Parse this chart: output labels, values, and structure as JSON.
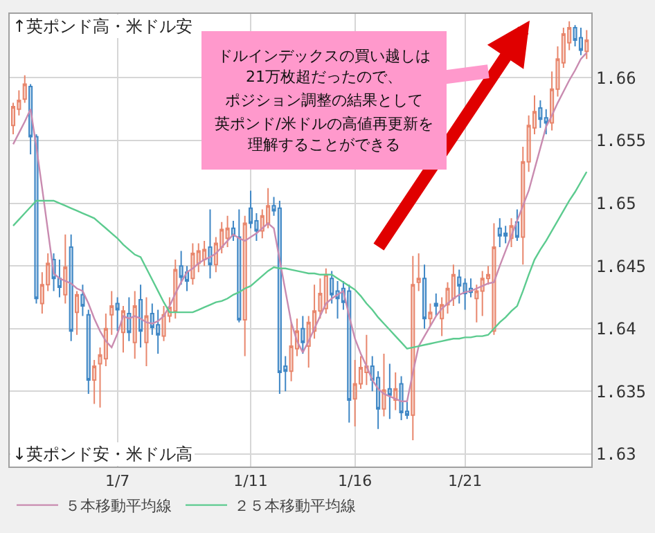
{
  "chart_data": {
    "type": "candlestick",
    "categories": [
      null,
      null,
      null,
      null,
      null,
      null,
      null,
      null,
      null,
      null,
      null,
      null,
      null,
      null,
      null,
      null,
      null,
      null,
      "1/7",
      null,
      null,
      null,
      null,
      null,
      null,
      null,
      null,
      null,
      null,
      null,
      null,
      null,
      null,
      null,
      null,
      null,
      null,
      null,
      null,
      null,
      null,
      "1/11",
      null,
      null,
      null,
      null,
      null,
      null,
      null,
      null,
      null,
      null,
      null,
      null,
      null,
      null,
      null,
      null,
      null,
      "1/16",
      null,
      null,
      null,
      null,
      null,
      null,
      null,
      null,
      null,
      null,
      null,
      null,
      null,
      null,
      null,
      null,
      null,
      null,
      "1/21",
      null,
      null,
      null,
      null,
      null,
      null,
      null,
      null,
      null,
      null,
      null,
      null,
      null,
      null,
      null,
      null,
      null,
      null,
      null,
      null,
      null
    ],
    "ohlc": [
      [
        1.6562,
        1.658,
        1.6555,
        1.6577
      ],
      [
        1.6575,
        1.659,
        1.657,
        1.6582
      ],
      [
        1.6583,
        1.6602,
        1.658,
        1.6595
      ],
      [
        1.6593,
        1.6595,
        1.6539,
        1.6553
      ],
      [
        1.6553,
        1.6555,
        1.642,
        1.6424
      ],
      [
        1.642,
        1.6445,
        1.6412,
        1.6435
      ],
      [
        1.6435,
        1.646,
        1.643,
        1.6452
      ],
      [
        1.6455,
        1.646,
        1.643,
        1.644
      ],
      [
        1.644,
        1.6455,
        1.6425,
        1.6433
      ],
      [
        1.6427,
        1.6475,
        1.642,
        1.6449
      ],
      [
        1.6465,
        1.6475,
        1.639,
        1.6398
      ],
      [
        1.6413,
        1.643,
        1.6395,
        1.6427
      ],
      [
        1.6427,
        1.6435,
        1.641,
        1.6418
      ],
      [
        1.6411,
        1.6415,
        1.6348,
        1.6359
      ],
      [
        1.6359,
        1.6375,
        1.634,
        1.637
      ],
      [
        1.6372,
        1.6385,
        1.6337,
        1.6379
      ],
      [
        1.6376,
        1.6412,
        1.637,
        1.64
      ],
      [
        1.6411,
        1.643,
        1.6395,
        1.6418
      ],
      [
        1.642,
        1.6425,
        1.6398,
        1.6415
      ],
      [
        1.6397,
        1.6418,
        1.6381,
        1.6414
      ],
      [
        1.6412,
        1.6425,
        1.639,
        1.6397
      ],
      [
        1.6389,
        1.643,
        1.6376,
        1.6418
      ],
      [
        1.6423,
        1.6435,
        1.6385,
        1.6398
      ],
      [
        1.6389,
        1.6425,
        1.637,
        1.641
      ],
      [
        1.6412,
        1.642,
        1.6395,
        1.6401
      ],
      [
        1.6403,
        1.6415,
        1.638,
        1.6395
      ],
      [
        1.6394,
        1.6418,
        1.639,
        1.6411
      ],
      [
        1.641,
        1.6425,
        1.6405,
        1.6417
      ],
      [
        1.6414,
        1.6455,
        1.6408,
        1.6447
      ],
      [
        1.645,
        1.6462,
        1.6435,
        1.6441
      ],
      [
        1.6445,
        1.645,
        1.643,
        1.6438
      ],
      [
        1.644,
        1.6468,
        1.6435,
        1.646
      ],
      [
        1.6452,
        1.6468,
        1.6445,
        1.6462
      ],
      [
        1.6455,
        1.647,
        1.645,
        1.6463
      ],
      [
        1.6465,
        1.6495,
        1.644,
        1.6451
      ],
      [
        1.6451,
        1.6473,
        1.6445,
        1.6468
      ],
      [
        1.6465,
        1.6485,
        1.646,
        1.6479
      ],
      [
        1.6472,
        1.649,
        1.6465,
        1.648
      ],
      [
        1.648,
        1.6486,
        1.647,
        1.6474
      ],
      [
        1.6473,
        1.6495,
        1.6405,
        1.6407
      ],
      [
        1.6407,
        1.649,
        1.6378,
        1.6484
      ],
      [
        1.6496,
        1.651,
        1.648,
        1.6484
      ],
      [
        1.6486,
        1.6492,
        1.647,
        1.6478
      ],
      [
        1.6478,
        1.6495,
        1.6472,
        1.649
      ],
      [
        1.6484,
        1.6512,
        1.648,
        1.6498
      ],
      [
        1.6498,
        1.6505,
        1.649,
        1.6494
      ],
      [
        1.6496,
        1.6502,
        1.6348,
        1.6365
      ],
      [
        1.637,
        1.6378,
        1.635,
        1.6366
      ],
      [
        1.6366,
        1.6405,
        1.6358,
        1.6386
      ],
      [
        1.6384,
        1.6408,
        1.6378,
        1.6398
      ],
      [
        1.64,
        1.641,
        1.638,
        1.6389
      ],
      [
        1.6386,
        1.641,
        1.6369,
        1.6405
      ],
      [
        1.6398,
        1.6435,
        1.6392,
        1.6414
      ],
      [
        1.6414,
        1.644,
        1.6408,
        1.6428
      ],
      [
        1.6416,
        1.6448,
        1.6412,
        1.6443
      ],
      [
        1.644,
        1.6446,
        1.642,
        1.6427
      ],
      [
        1.643,
        1.6438,
        1.6408,
        1.6424
      ],
      [
        1.6432,
        1.6438,
        1.6415,
        1.6421
      ],
      [
        1.643,
        1.6435,
        1.6325,
        1.6343
      ],
      [
        1.6344,
        1.6375,
        1.6322,
        1.6356
      ],
      [
        1.6356,
        1.6378,
        1.6352,
        1.6369
      ],
      [
        1.6365,
        1.6395,
        1.6355,
        1.637
      ],
      [
        1.637,
        1.6378,
        1.635,
        1.6359
      ],
      [
        1.6361,
        1.6366,
        1.632,
        1.6336
      ],
      [
        1.6336,
        1.638,
        1.633,
        1.6351
      ],
      [
        1.6352,
        1.6372,
        1.6328,
        1.6347
      ],
      [
        1.6343,
        1.6365,
        1.6335,
        1.6352
      ],
      [
        1.6356,
        1.6362,
        1.6327,
        1.6333
      ],
      [
        1.6334,
        1.6342,
        1.6328,
        1.6331
      ],
      [
        1.6331,
        1.6458,
        1.6311,
        1.6435
      ],
      [
        1.6437,
        1.646,
        1.643,
        1.644
      ],
      [
        1.644,
        1.6451,
        1.64,
        1.6408
      ],
      [
        1.6408,
        1.642,
        1.6402,
        1.6413
      ],
      [
        1.642,
        1.6428,
        1.641,
        1.6418
      ],
      [
        1.6408,
        1.6425,
        1.6394,
        1.6419
      ],
      [
        1.6419,
        1.6437,
        1.6412,
        1.6432
      ],
      [
        1.6424,
        1.6451,
        1.6418,
        1.6443
      ],
      [
        1.6441,
        1.6447,
        1.642,
        1.6434
      ],
      [
        1.6436,
        1.644,
        1.6415,
        1.6428
      ],
      [
        1.6432,
        1.644,
        1.6425,
        1.6429
      ],
      [
        1.6424,
        1.6435,
        1.6405,
        1.643
      ],
      [
        1.643,
        1.6446,
        1.641,
        1.644
      ],
      [
        1.644,
        1.645,
        1.6435,
        1.6443
      ],
      [
        1.6398,
        1.6484,
        1.6395,
        1.6465
      ],
      [
        1.648,
        1.6488,
        1.6465,
        1.6474
      ],
      [
        1.6476,
        1.6482,
        1.6468,
        1.6474
      ],
      [
        1.6472,
        1.6488,
        1.6465,
        1.6482
      ],
      [
        1.6485,
        1.6495,
        1.647,
        1.6473
      ],
      [
        1.6473,
        1.6545,
        1.6451,
        1.6533
      ],
      [
        1.6533,
        1.657,
        1.6525,
        1.6562
      ],
      [
        1.656,
        1.6586,
        1.6555,
        1.6573
      ],
      [
        1.6576,
        1.6582,
        1.656,
        1.6567
      ],
      [
        1.6568,
        1.6575,
        1.6555,
        1.6564
      ],
      [
        1.6564,
        1.6605,
        1.6558,
        1.6591
      ],
      [
        1.6591,
        1.6625,
        1.6585,
        1.6615
      ],
      [
        1.6612,
        1.664,
        1.6608,
        1.6635
      ],
      [
        1.6628,
        1.6645,
        1.6622,
        1.664
      ],
      [
        1.664,
        1.6642,
        1.6625,
        1.663
      ],
      [
        1.6632,
        1.664,
        1.6618,
        1.6622
      ],
      [
        1.6621,
        1.6638,
        1.6615,
        1.663
      ]
    ],
    "colors": [
      "#e8866c",
      "#e8866c",
      "#e8866c",
      "#3f87c5",
      "#3f87c5",
      "#e8866c",
      "#e8866c",
      "#3f87c5",
      "#3f87c5",
      "#e8866c",
      "#3f87c5",
      "#e8866c",
      "#3f87c5",
      "#3f87c5",
      "#e8866c",
      "#e8866c",
      "#e8866c",
      "#e8866c",
      "#3f87c5",
      "#e8866c",
      "#3f87c5",
      "#e8866c",
      "#3f87c5",
      "#e8866c",
      "#3f87c5",
      "#3f87c5",
      "#e8866c",
      "#e8866c",
      "#e8866c",
      "#3f87c5",
      "#3f87c5",
      "#e8866c",
      "#e8866c",
      "#e8866c",
      "#3f87c5",
      "#e8866c",
      "#e8866c",
      "#e8866c",
      "#3f87c5",
      "#3f87c5",
      "#e8866c",
      "#3f87c5",
      "#3f87c5",
      "#e8866c",
      "#e8866c",
      "#3f87c5",
      "#3f87c5",
      "#3f87c5",
      "#e8866c",
      "#e8866c",
      "#3f87c5",
      "#e8866c",
      "#e8866c",
      "#e8866c",
      "#e8866c",
      "#3f87c5",
      "#3f87c5",
      "#3f87c5",
      "#3f87c5",
      "#e8866c",
      "#e8866c",
      "#e8866c",
      "#3f87c5",
      "#3f87c5",
      "#e8866c",
      "#3f87c5",
      "#e8866c",
      "#3f87c5",
      "#3f87c5",
      "#e8866c",
      "#e8866c",
      "#3f87c5",
      "#e8866c",
      "#3f87c5",
      "#e8866c",
      "#e8866c",
      "#e8866c",
      "#3f87c5",
      "#3f87c5",
      "#3f87c5",
      "#e8866c",
      "#e8866c",
      "#e8866c",
      "#e8866c",
      "#3f87c5",
      "#3f87c5",
      "#e8866c",
      "#3f87c5",
      "#e8866c",
      "#e8866c",
      "#e8866c",
      "#3f87c5",
      "#3f87c5",
      "#e8866c",
      "#e8866c",
      "#e8866c",
      "#e8866c",
      "#3f87c5",
      "#3f87c5",
      "#e8866c"
    ],
    "series": [
      {
        "name": "５本移動平均線",
        "type": "line",
        "color": "#c98bb0",
        "values": [
          1.6547,
          1.6556,
          1.6565,
          1.6575,
          1.6545,
          1.6512,
          1.6478,
          1.6444,
          1.644,
          1.6438,
          1.6436,
          1.6432,
          1.643,
          1.642,
          1.6408,
          1.6398,
          1.639,
          1.6385,
          1.6396,
          1.641,
          1.6408,
          1.641,
          1.6408,
          1.6405,
          1.6404,
          1.6406,
          1.641,
          1.6418,
          1.6428,
          1.6437,
          1.6445,
          1.6448,
          1.6452,
          1.6455,
          1.6457,
          1.646,
          1.6465,
          1.647,
          1.6475,
          1.6472,
          1.647,
          1.6473,
          1.6476,
          1.648,
          1.6484,
          1.648,
          1.6455,
          1.643,
          1.6405,
          1.639,
          1.6381,
          1.639,
          1.64,
          1.641,
          1.642,
          1.6424,
          1.6427,
          1.643,
          1.641,
          1.6392,
          1.638,
          1.637,
          1.6359,
          1.6352,
          1.6348,
          1.6346,
          1.6344,
          1.6342,
          1.6342,
          1.6365,
          1.6386,
          1.6394,
          1.6402,
          1.641,
          1.6416,
          1.642,
          1.6424,
          1.6427,
          1.6429,
          1.643,
          1.6432,
          1.6434,
          1.6436,
          1.6437,
          1.645,
          1.6462,
          1.6474,
          1.6486,
          1.6498,
          1.651,
          1.6527,
          1.6544,
          1.6561,
          1.657,
          1.658,
          1.6589,
          1.6598,
          1.6606,
          1.6615,
          1.662
        ]
      },
      {
        "name": "２５本移動平均線",
        "type": "line",
        "color": "#5ccb8f",
        "values": [
          1.6482,
          1.6487,
          1.6492,
          1.6497,
          1.6502,
          1.6502,
          1.6502,
          1.6502,
          1.65,
          1.6498,
          1.6496,
          1.6494,
          1.6492,
          1.649,
          1.6488,
          1.6484,
          1.648,
          1.6476,
          1.6472,
          1.6467,
          1.6463,
          1.6459,
          1.6457,
          1.6448,
          1.6439,
          1.643,
          1.6421,
          1.6413,
          1.6413,
          1.6413,
          1.6413,
          1.6413,
          1.6415,
          1.6417,
          1.6419,
          1.6421,
          1.6422,
          1.6424,
          1.6427,
          1.6429,
          1.6432,
          1.6434,
          1.6438,
          1.6442,
          1.6446,
          1.6449,
          1.6448,
          1.6448,
          1.6447,
          1.6446,
          1.6445,
          1.6444,
          1.6444,
          1.6443,
          1.6443,
          1.6443,
          1.644,
          1.6437,
          1.6434,
          1.6431,
          1.6426,
          1.642,
          1.6415,
          1.6409,
          1.6404,
          1.6399,
          1.6394,
          1.6389,
          1.6384,
          1.6385,
          1.6386,
          1.6387,
          1.6388,
          1.6389,
          1.639,
          1.6391,
          1.6392,
          1.6392,
          1.6393,
          1.6393,
          1.6394,
          1.6394,
          1.6395,
          1.64,
          1.6405,
          1.6409,
          1.6414,
          1.6418,
          1.643,
          1.6443,
          1.6455,
          1.6463,
          1.647,
          1.6478,
          1.6486,
          1.6494,
          1.6502,
          1.6509,
          1.6517,
          1.6525
        ]
      }
    ],
    "ylim": [
      1.629,
      1.6651
    ],
    "yticks": [
      1.63,
      1.635,
      1.64,
      1.645,
      1.65,
      1.655,
      1.66
    ],
    "grid": true,
    "legend": "bottom",
    "annotations": [
      "↑英ポンド高・米ドル安",
      "↓英ポンド安・米ドル高",
      "ドルインデックスの買い越しは",
      "21万枚超だったので、",
      "ポジション調整の結果として",
      "英ポンド/米ドルの高値再更新を",
      "理解することができる"
    ]
  }
}
